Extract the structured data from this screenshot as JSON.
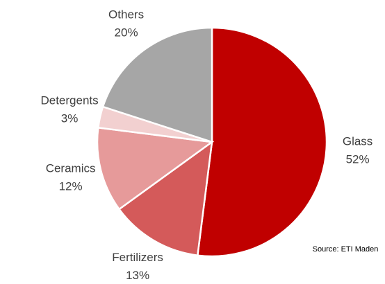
{
  "chart_data": {
    "type": "pie",
    "categories": [
      "Glass",
      "Fertilizers",
      "Ceramics",
      "Detergents",
      "Others"
    ],
    "values": [
      52,
      13,
      12,
      3,
      20
    ],
    "value_labels": [
      "52%",
      "13%",
      "12%",
      "3%",
      "20%"
    ],
    "colors": [
      "#c00000",
      "#d45a5a",
      "#e69a9a",
      "#f2d0d0",
      "#a6a6a6"
    ],
    "annotation": "Source: ETI Maden"
  }
}
